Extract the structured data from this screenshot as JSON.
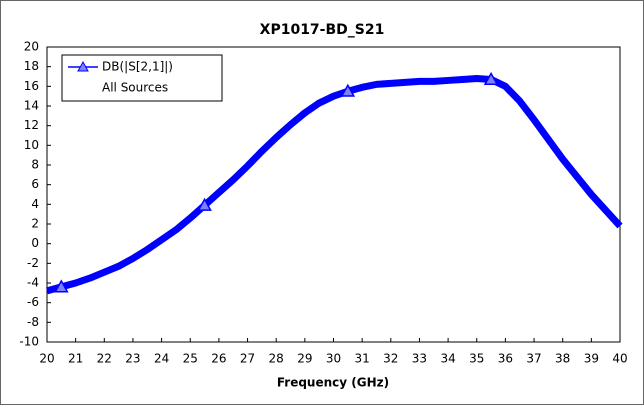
{
  "chart_data": {
    "type": "line",
    "title": "XP1017-BD_S21",
    "xlabel": "Frequency (GHz)",
    "legend_note": "All Sources",
    "x": [
      20,
      20.5,
      21,
      21.5,
      22,
      22.5,
      23,
      23.5,
      24,
      24.5,
      25,
      25.5,
      26,
      26.5,
      27,
      27.5,
      28,
      28.5,
      29,
      29.5,
      30,
      30.5,
      31,
      31.5,
      32,
      32.5,
      33,
      33.5,
      34,
      34.5,
      35,
      35.5,
      36,
      36.5,
      37,
      37.5,
      38,
      38.5,
      39,
      39.5,
      40
    ],
    "series": [
      {
        "name": "DB(|S[2,1]|)",
        "color": "#0000ff",
        "values": [
          -4.8,
          -4.4,
          -4.0,
          -3.5,
          -2.9,
          -2.3,
          -1.5,
          -0.6,
          0.4,
          1.4,
          2.6,
          3.9,
          5.2,
          6.5,
          7.9,
          9.4,
          10.8,
          12.1,
          13.3,
          14.3,
          15.0,
          15.5,
          15.9,
          16.2,
          16.3,
          16.4,
          16.5,
          16.5,
          16.6,
          16.7,
          16.8,
          16.7,
          16.0,
          14.5,
          12.6,
          10.6,
          8.6,
          6.8,
          5.0,
          3.4,
          1.8
        ]
      }
    ],
    "xlim": [
      20,
      40
    ],
    "xticks": [
      20,
      21,
      22,
      23,
      24,
      25,
      26,
      27,
      28,
      29,
      30,
      31,
      32,
      33,
      34,
      35,
      36,
      37,
      38,
      39,
      40
    ],
    "ylim": [
      -10,
      20
    ],
    "yticks": [
      -10,
      -8,
      -6,
      -4,
      -2,
      0,
      2,
      4,
      6,
      8,
      10,
      12,
      14,
      16,
      18,
      20
    ],
    "grid": false
  }
}
